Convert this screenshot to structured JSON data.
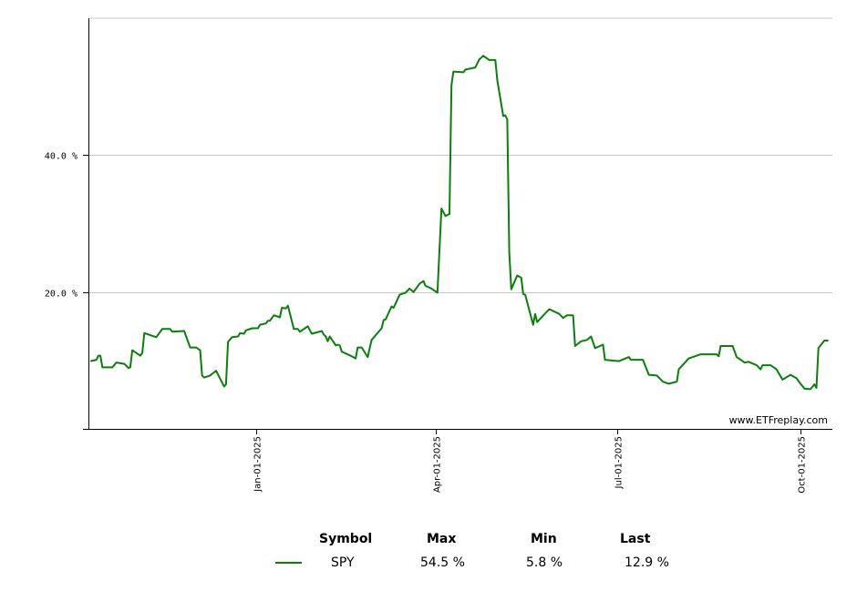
{
  "chart_data": {
    "type": "line",
    "title": "",
    "xlabel": "",
    "ylabel": "",
    "x_unit": "days since Jan-01-2025",
    "xlim": [
      -84,
      289
    ],
    "ylim": [
      0,
      60
    ],
    "y_ticks": [
      {
        "value": 20,
        "label": "20.0 %"
      },
      {
        "value": 40,
        "label": "40.0 %"
      }
    ],
    "x_ticks": [
      {
        "value": 0,
        "label": "Jan-01-2025"
      },
      {
        "value": 90,
        "label": "Apr-01-2025"
      },
      {
        "value": 181,
        "label": "Jul-01-2025"
      },
      {
        "value": 273,
        "label": "Oct-01-2025"
      }
    ],
    "grid": true,
    "watermark": "www.ETFreplay.com",
    "series": [
      {
        "name": "SPY",
        "color": "#0a7f0a",
        "points": [
          [
            -83,
            9.9
          ],
          [
            -80,
            10.1
          ],
          [
            -79,
            10.7
          ],
          [
            -78,
            10.7
          ],
          [
            -77,
            9.0
          ],
          [
            -72,
            9.0
          ],
          [
            -70,
            9.7
          ],
          [
            -66,
            9.5
          ],
          [
            -64,
            8.9
          ],
          [
            -63,
            9.0
          ],
          [
            -62,
            11.5
          ],
          [
            -58,
            10.7
          ],
          [
            -57,
            11.1
          ],
          [
            -56,
            14.0
          ],
          [
            -52,
            13.6
          ],
          [
            -50,
            13.4
          ],
          [
            -49,
            13.8
          ],
          [
            -47,
            14.6
          ],
          [
            -43,
            14.6
          ],
          [
            -42,
            14.2
          ],
          [
            -36,
            14.3
          ],
          [
            -33,
            11.9
          ],
          [
            -30,
            11.9
          ],
          [
            -28,
            11.5
          ],
          [
            -27,
            7.8
          ],
          [
            -26,
            7.5
          ],
          [
            -23,
            7.8
          ],
          [
            -20,
            8.5
          ],
          [
            -16,
            6.2
          ],
          [
            -15,
            6.5
          ],
          [
            -14,
            12.7
          ],
          [
            -12,
            13.4
          ],
          [
            -9,
            13.5
          ],
          [
            -8,
            14.0
          ],
          [
            -6,
            13.9
          ],
          [
            -5,
            14.4
          ],
          [
            -2,
            14.7
          ],
          [
            1,
            14.7
          ],
          [
            2,
            15.2
          ],
          [
            5,
            15.4
          ],
          [
            6,
            15.8
          ],
          [
            7,
            15.8
          ],
          [
            9,
            16.6
          ],
          [
            12,
            16.3
          ],
          [
            13,
            17.7
          ],
          [
            15,
            17.6
          ],
          [
            16,
            18.0
          ],
          [
            19,
            14.6
          ],
          [
            21,
            14.6
          ],
          [
            22,
            14.2
          ],
          [
            26,
            15.0
          ],
          [
            28,
            13.9
          ],
          [
            33,
            14.3
          ],
          [
            34,
            13.8
          ],
          [
            35,
            13.5
          ],
          [
            36,
            12.8
          ],
          [
            37,
            13.5
          ],
          [
            40,
            12.2
          ],
          [
            41,
            12.3
          ],
          [
            42,
            12.2
          ],
          [
            43,
            11.3
          ],
          [
            48,
            10.6
          ],
          [
            50,
            10.3
          ],
          [
            51,
            11.9
          ],
          [
            53,
            11.9
          ],
          [
            56,
            10.5
          ],
          [
            58,
            13.0
          ],
          [
            63,
            14.7
          ],
          [
            64,
            15.9
          ],
          [
            65,
            16.0
          ],
          [
            68,
            17.9
          ],
          [
            69,
            17.7
          ],
          [
            70,
            18.3
          ],
          [
            72,
            19.6
          ],
          [
            75,
            19.9
          ],
          [
            77,
            20.5
          ],
          [
            79,
            20.0
          ],
          [
            82,
            21.2
          ],
          [
            84,
            21.6
          ],
          [
            85,
            20.9
          ],
          [
            88,
            20.5
          ],
          [
            91,
            19.9
          ],
          [
            93,
            32.2
          ],
          [
            95,
            31.1
          ],
          [
            97,
            31.4
          ],
          [
            98,
            50.2
          ],
          [
            99,
            52.2
          ],
          [
            104,
            52.1
          ],
          [
            105,
            52.5
          ],
          [
            110,
            52.8
          ],
          [
            112,
            54.0
          ],
          [
            114,
            54.5
          ],
          [
            117,
            53.9
          ],
          [
            120,
            53.9
          ],
          [
            121,
            50.9
          ],
          [
            124,
            45.7
          ],
          [
            125,
            45.8
          ],
          [
            126,
            45.2
          ],
          [
            127,
            25.8
          ],
          [
            128,
            20.4
          ],
          [
            131,
            22.4
          ],
          [
            133,
            22.1
          ],
          [
            134,
            19.7
          ],
          [
            135,
            19.6
          ],
          [
            139,
            15.2
          ],
          [
            140,
            16.8
          ],
          [
            141,
            15.6
          ],
          [
            147,
            17.5
          ],
          [
            152,
            16.8
          ],
          [
            154,
            16.2
          ],
          [
            156,
            16.6
          ],
          [
            159,
            16.6
          ],
          [
            160,
            12.1
          ],
          [
            163,
            12.8
          ],
          [
            166,
            13.0
          ],
          [
            168,
            13.5
          ],
          [
            170,
            11.8
          ],
          [
            174,
            12.3
          ],
          [
            175,
            10.1
          ],
          [
            182,
            9.9
          ],
          [
            187,
            10.5
          ],
          [
            188,
            10.1
          ],
          [
            194,
            10.1
          ],
          [
            197,
            7.9
          ],
          [
            201,
            7.8
          ],
          [
            204,
            6.9
          ],
          [
            207,
            6.6
          ],
          [
            211,
            6.9
          ],
          [
            212,
            8.7
          ],
          [
            217,
            10.3
          ],
          [
            220,
            10.6
          ],
          [
            223,
            10.9
          ],
          [
            231,
            10.9
          ],
          [
            232,
            10.6
          ],
          [
            233,
            12.1
          ],
          [
            239,
            12.1
          ],
          [
            241,
            10.5
          ],
          [
            245,
            9.7
          ],
          [
            247,
            9.8
          ],
          [
            251,
            9.3
          ],
          [
            253,
            8.7
          ],
          [
            254,
            9.3
          ],
          [
            258,
            9.3
          ],
          [
            261,
            8.7
          ],
          [
            264,
            7.2
          ],
          [
            268,
            7.9
          ],
          [
            271,
            7.4
          ],
          [
            273,
            6.6
          ],
          [
            275,
            5.9
          ],
          [
            278,
            5.8
          ],
          [
            280,
            6.5
          ],
          [
            281,
            6.0
          ],
          [
            282,
            11.8
          ],
          [
            285,
            12.9
          ],
          [
            287,
            12.9
          ]
        ]
      }
    ]
  },
  "legend": {
    "headers": {
      "symbol": "Symbol",
      "max": "Max",
      "min": "Min",
      "last": "Last"
    },
    "rows": [
      {
        "symbol": "SPY",
        "max": "54.5 %",
        "min": "5.8 %",
        "last": "12.9 %",
        "color": "#0a7f0a"
      }
    ]
  }
}
